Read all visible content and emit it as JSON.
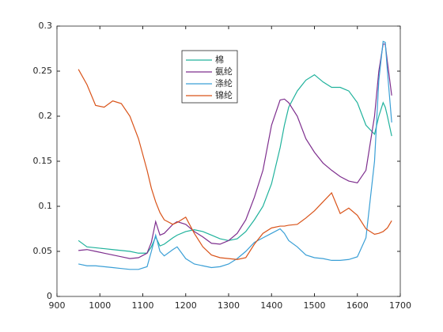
{
  "chart_data": {
    "type": "line",
    "x": [
      950,
      970,
      990,
      1010,
      1030,
      1050,
      1070,
      1090,
      1110,
      1120,
      1130,
      1140,
      1150,
      1170,
      1180,
      1200,
      1220,
      1240,
      1260,
      1280,
      1300,
      1320,
      1340,
      1360,
      1380,
      1400,
      1420,
      1430,
      1440,
      1460,
      1480,
      1500,
      1520,
      1540,
      1560,
      1580,
      1600,
      1620,
      1640,
      1650,
      1660,
      1665,
      1670,
      1680
    ],
    "series": [
      {
        "name": "棉",
        "color": "#20b29c",
        "values": [
          0.062,
          0.055,
          0.054,
          0.053,
          0.052,
          0.051,
          0.05,
          0.048,
          0.048,
          0.055,
          0.066,
          0.056,
          0.058,
          0.065,
          0.068,
          0.072,
          0.074,
          0.072,
          0.068,
          0.064,
          0.062,
          0.064,
          0.072,
          0.085,
          0.1,
          0.125,
          0.165,
          0.19,
          0.21,
          0.228,
          0.24,
          0.246,
          0.238,
          0.232,
          0.232,
          0.228,
          0.215,
          0.19,
          0.18,
          0.2,
          0.215,
          0.21,
          0.2,
          0.178
        ]
      },
      {
        "name": "氨纶",
        "color": "#7e2f8e",
        "values": [
          0.051,
          0.052,
          0.05,
          0.048,
          0.046,
          0.044,
          0.042,
          0.043,
          0.048,
          0.06,
          0.083,
          0.068,
          0.07,
          0.08,
          0.083,
          0.08,
          0.072,
          0.066,
          0.059,
          0.058,
          0.062,
          0.07,
          0.085,
          0.11,
          0.14,
          0.19,
          0.218,
          0.219,
          0.215,
          0.2,
          0.175,
          0.16,
          0.148,
          0.14,
          0.133,
          0.128,
          0.126,
          0.14,
          0.2,
          0.25,
          0.28,
          0.28,
          0.26,
          0.223
        ]
      },
      {
        "name": "涤纶",
        "color": "#3a9fd6",
        "values": [
          0.036,
          0.034,
          0.034,
          0.033,
          0.032,
          0.031,
          0.03,
          0.03,
          0.033,
          0.05,
          0.068,
          0.05,
          0.045,
          0.052,
          0.055,
          0.042,
          0.036,
          0.034,
          0.032,
          0.033,
          0.036,
          0.042,
          0.05,
          0.06,
          0.065,
          0.07,
          0.075,
          0.07,
          0.062,
          0.055,
          0.046,
          0.043,
          0.042,
          0.04,
          0.04,
          0.041,
          0.044,
          0.065,
          0.15,
          0.24,
          0.283,
          0.282,
          0.25,
          0.193
        ]
      },
      {
        "name": "锦纶",
        "color": "#d95319",
        "values": [
          0.252,
          0.235,
          0.212,
          0.21,
          0.217,
          0.214,
          0.2,
          0.175,
          0.14,
          0.12,
          0.105,
          0.093,
          0.085,
          0.08,
          0.082,
          0.088,
          0.07,
          0.055,
          0.046,
          0.043,
          0.042,
          0.041,
          0.043,
          0.058,
          0.07,
          0.076,
          0.078,
          0.078,
          0.079,
          0.08,
          0.087,
          0.095,
          0.105,
          0.115,
          0.092,
          0.098,
          0.09,
          0.075,
          0.069,
          0.07,
          0.072,
          0.074,
          0.076,
          0.084
        ]
      }
    ],
    "xlim": [
      900,
      1700
    ],
    "xticks": [
      900,
      1000,
      1100,
      1200,
      1300,
      1400,
      1500,
      1600,
      1700
    ],
    "ylim": [
      0,
      0.3
    ],
    "yticks": [
      0,
      0.05,
      0.1,
      0.15,
      0.2,
      0.25,
      0.3
    ],
    "grid": false,
    "legend_position": "north"
  }
}
